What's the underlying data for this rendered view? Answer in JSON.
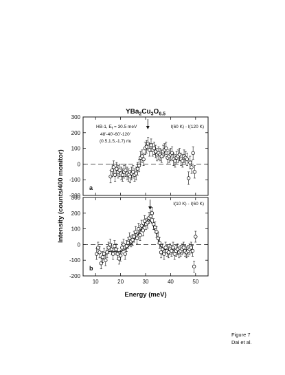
{
  "figure": {
    "title_main": "YBa",
    "title_sub1": "2",
    "title_mid": "Cu",
    "title_sub2": "3",
    "title_o": "O",
    "title_sub3": "6.5",
    "xlabel": "Energy (meV)",
    "ylabel": "Intensity (counts/400 monitor)",
    "caption_line1": "Figure 7",
    "caption_line2": "Dai et al."
  },
  "chart_data": [
    {
      "type": "scatter",
      "panel_label": "a",
      "legend_text": "I(60 K) - I(120 K)",
      "annotation_line1_pre": "HB-1, E",
      "annotation_line1_sub": "f",
      "annotation_line1_post": " = 30.5 meV",
      "annotation_line2": "48'-40'-60'-120'",
      "annotation_line3": "(0.5,1.5,-1.7) rlu",
      "arrow_x": 30.9,
      "xlim": [
        5,
        55
      ],
      "ylim": [
        -200,
        300
      ],
      "yticks": [
        -200,
        -100,
        0,
        100,
        200,
        300
      ],
      "xticks": [
        10,
        20,
        30,
        40,
        50
      ],
      "baseline": 0,
      "series": [
        {
          "x": [
            16,
            16.6,
            17.2,
            17.8,
            18.4,
            19,
            19.6,
            20.2,
            20.8,
            21.4,
            22,
            22.6,
            23.2,
            23.8,
            24.4,
            25,
            25.6,
            26.2,
            26.8,
            27.4,
            28,
            28.6,
            29.2,
            29.8,
            30.4,
            31,
            31.6,
            32.2,
            32.8,
            33.4,
            34,
            34.6,
            35.2,
            35.8,
            36.4,
            37,
            37.6,
            38.2,
            38.8,
            39.4,
            40,
            40.6,
            41.2,
            41.8,
            42.4,
            43,
            43.6,
            44.2,
            44.8,
            45.4,
            46,
            46.6,
            47.2,
            47.8,
            48.4,
            49,
            49.6
          ],
          "y": [
            -80,
            -40,
            -20,
            -70,
            -30,
            -50,
            -40,
            -60,
            -70,
            -50,
            -40,
            -60,
            -70,
            -80,
            -60,
            -50,
            -70,
            -60,
            -30,
            -10,
            40,
            50,
            30,
            100,
            110,
            130,
            90,
            120,
            90,
            100,
            80,
            60,
            70,
            60,
            50,
            80,
            90,
            100,
            40,
            50,
            60,
            70,
            30,
            20,
            40,
            50,
            60,
            30,
            20,
            50,
            40,
            30,
            -90,
            10,
            -20,
            70,
            -50
          ],
          "err": [
            40,
            40,
            40,
            40,
            40,
            40,
            40,
            40,
            40,
            40,
            40,
            40,
            40,
            40,
            40,
            40,
            40,
            40,
            40,
            40,
            40,
            40,
            40,
            40,
            40,
            40,
            40,
            40,
            40,
            40,
            40,
            40,
            40,
            40,
            40,
            40,
            40,
            40,
            40,
            40,
            40,
            40,
            40,
            40,
            40,
            40,
            40,
            40,
            40,
            40,
            40,
            40,
            40,
            40,
            40,
            40,
            40
          ]
        }
      ]
    },
    {
      "type": "scatter",
      "panel_label": "b",
      "legend_text": "I(10 K) - I(60 K)",
      "arrow_x": 31.8,
      "xlim": [
        5,
        55
      ],
      "ylim": [
        -200,
        300
      ],
      "yticks": [
        -200,
        -100,
        0,
        100,
        200,
        300
      ],
      "xticks": [
        10,
        20,
        30,
        40,
        50
      ],
      "baseline": 0,
      "fit_curve": {
        "x": [
          14,
          16,
          18,
          20,
          22,
          24,
          26,
          28,
          30,
          31,
          32,
          33,
          34,
          36,
          38,
          40,
          42,
          44,
          46,
          48
        ],
        "y": [
          -40,
          -45,
          -45,
          -45,
          -30,
          0,
          40,
          90,
          140,
          160,
          150,
          120,
          80,
          -10,
          -35,
          -40,
          -40,
          -40,
          -40,
          -40
        ]
      },
      "series": [
        {
          "x": [
            10.4,
            11,
            11.6,
            12.2,
            12.8,
            13.4,
            14,
            14.6,
            15.2,
            15.8,
            16.4,
            17,
            17.6,
            18.2,
            18.8,
            19.4,
            20,
            20.6,
            21.2,
            21.8,
            22.4,
            23,
            23.6,
            24.2,
            24.8,
            25.4,
            26,
            26.6,
            27.2,
            27.8,
            28.4,
            29,
            29.6,
            30.2,
            30.8,
            31.4,
            32,
            32.6,
            33.2,
            33.8,
            34.4,
            35,
            35.6,
            36.2,
            36.8,
            37.4,
            38,
            38.6,
            39.2,
            39.8,
            40.4,
            41,
            41.6,
            42.2,
            42.8,
            43.4,
            44,
            44.6,
            45.2,
            45.8,
            46.4,
            47,
            47.6,
            48.2,
            48.8,
            49.4,
            50
          ],
          "y": [
            -60,
            -20,
            -50,
            -120,
            -80,
            -60,
            -100,
            -50,
            -20,
            0,
            -30,
            -60,
            -10,
            -30,
            -60,
            -90,
            -70,
            -20,
            0,
            -60,
            -10,
            10,
            40,
            20,
            30,
            50,
            80,
            40,
            100,
            60,
            120,
            90,
            150,
            130,
            140,
            170,
            180,
            200,
            130,
            110,
            80,
            40,
            10,
            -50,
            -30,
            -60,
            -20,
            -40,
            -50,
            -30,
            -40,
            -20,
            -60,
            -40,
            -30,
            -50,
            -40,
            -30,
            -20,
            -40,
            -50,
            -40,
            -30,
            -20,
            -40,
            -140,
            50
          ],
          "err": [
            35,
            35,
            35,
            35,
            35,
            35,
            35,
            35,
            35,
            35,
            35,
            35,
            35,
            35,
            35,
            35,
            35,
            35,
            35,
            35,
            35,
            35,
            35,
            35,
            35,
            35,
            35,
            35,
            35,
            35,
            35,
            35,
            35,
            35,
            35,
            35,
            35,
            35,
            35,
            35,
            35,
            35,
            35,
            35,
            35,
            35,
            35,
            35,
            35,
            35,
            35,
            35,
            35,
            35,
            35,
            35,
            35,
            35,
            35,
            35,
            35,
            35,
            35,
            35,
            35,
            35,
            35
          ]
        }
      ]
    }
  ]
}
